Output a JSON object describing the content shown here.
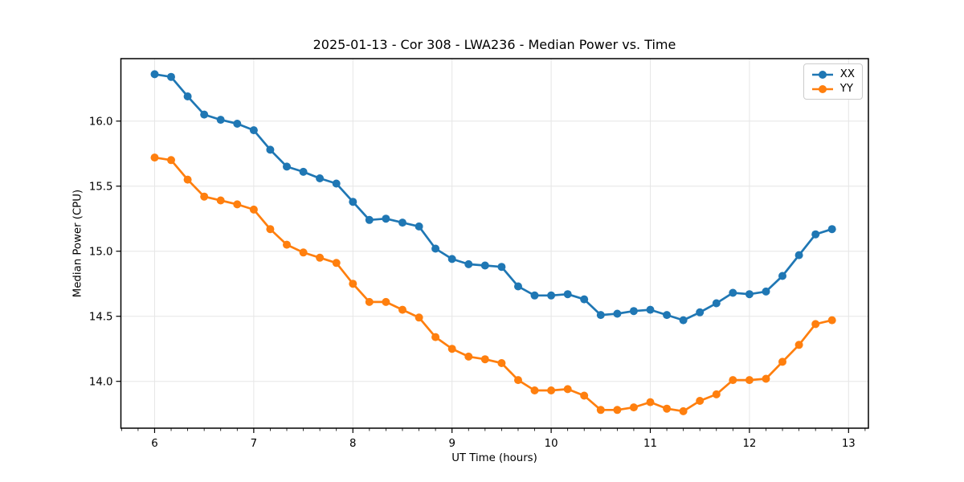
{
  "figure": {
    "background": "#ffffff",
    "spine_color": "#000000",
    "grid_color": "#e6e6e6",
    "text_color": "#000000"
  },
  "chart_data": {
    "type": "line",
    "title": "2025-01-13 - Cor 308 - LWA236 - Median Power vs. Time",
    "xlabel": "UT Time (hours)",
    "ylabel": "Median Power (CPU)",
    "xlim": [
      5.66,
      13.2
    ],
    "ylim": [
      13.64,
      16.48
    ],
    "x_major_ticks": [
      6,
      7,
      8,
      9,
      10,
      11,
      12,
      13
    ],
    "y_major_ticks": [
      14.0,
      14.5,
      15.0,
      15.5,
      16.0
    ],
    "x_minor_ticks_per_hour": 6,
    "grid": true,
    "legend_position": "upper right",
    "x": [
      6.0,
      6.1667,
      6.3333,
      6.5,
      6.6667,
      6.8333,
      7.0,
      7.1667,
      7.3333,
      7.5,
      7.6667,
      7.8333,
      8.0,
      8.1667,
      8.3333,
      8.5,
      8.6667,
      8.8333,
      9.0,
      9.1667,
      9.3333,
      9.5,
      9.6667,
      9.8333,
      10.0,
      10.1667,
      10.3333,
      10.5,
      10.6667,
      10.8333,
      11.0,
      11.1667,
      11.3333,
      11.5,
      11.6667,
      11.8333,
      12.0,
      12.1667,
      12.3333,
      12.5,
      12.6667,
      12.8333
    ],
    "series": [
      {
        "name": "XX",
        "color": "#1f77b4",
        "values": [
          16.36,
          16.34,
          16.19,
          16.05,
          16.01,
          15.98,
          15.93,
          15.78,
          15.65,
          15.61,
          15.56,
          15.52,
          15.38,
          15.24,
          15.25,
          15.22,
          15.19,
          15.02,
          14.94,
          14.9,
          14.89,
          14.88,
          14.73,
          14.66,
          14.66,
          14.67,
          14.63,
          14.51,
          14.52,
          14.54,
          14.55,
          14.51,
          14.47,
          14.53,
          14.6,
          14.68,
          14.67,
          14.69,
          14.81,
          14.97,
          15.13,
          15.17
        ]
      },
      {
        "name": "YY",
        "color": "#ff7f0e",
        "values": [
          15.72,
          15.7,
          15.55,
          15.42,
          15.39,
          15.36,
          15.32,
          15.17,
          15.05,
          14.99,
          14.95,
          14.91,
          14.75,
          14.61,
          14.61,
          14.55,
          14.49,
          14.34,
          14.25,
          14.19,
          14.17,
          14.14,
          14.01,
          13.93,
          13.93,
          13.94,
          13.89,
          13.78,
          13.78,
          13.8,
          13.84,
          13.79,
          13.77,
          13.85,
          13.9,
          14.01,
          14.01,
          14.02,
          14.15,
          14.28,
          14.44,
          14.47
        ]
      }
    ]
  },
  "legend": {
    "items": [
      {
        "label": "XX",
        "color": "#1f77b4"
      },
      {
        "label": "YY",
        "color": "#ff7f0e"
      }
    ]
  }
}
